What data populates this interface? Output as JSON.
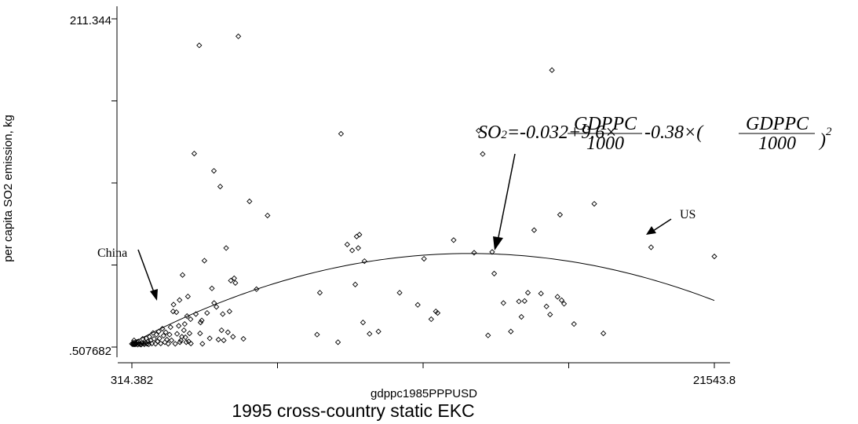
{
  "chart_data": {
    "type": "scatter",
    "title": "1995 cross-country static EKC",
    "xlabel": "gdppc1985PPPUSD",
    "ylabel": "per capita SO2 emission, kg",
    "xlim": [
      314.382,
      21543.8
    ],
    "ylim": [
      0.507682,
      211.344
    ],
    "x_tick_labels": [
      "314.382",
      "21543.8"
    ],
    "y_tick_labels": [
      "211.344",
      ".507682"
    ],
    "x_ticks": [
      314.382,
      5621.74,
      10929.09,
      16236.45,
      21543.8
    ],
    "y_ticks": [
      0.507682,
      53.217,
      105.926,
      158.635,
      211.344
    ],
    "grid": false,
    "series": [
      {
        "marker": "diamond-hollow",
        "points": [
          [
            314.4,
            2.6
          ],
          [
            344.4,
            2.3
          ],
          [
            362.7,
            3.3
          ],
          [
            380.9,
            2.3
          ],
          [
            405.2,
            2.6
          ],
          [
            393.1,
            4.8
          ],
          [
            417.4,
            2.3
          ],
          [
            441.7,
            3.6
          ],
          [
            454.1,
            2.3
          ],
          [
            478.1,
            2.8
          ],
          [
            502.6,
            3.8
          ],
          [
            526.8,
            2.1
          ],
          [
            551.2,
            4.1
          ],
          [
            569.5,
            2.6
          ],
          [
            612.0,
            2.3
          ],
          [
            654.5,
            2.1
          ],
          [
            685.0,
            3.1
          ],
          [
            709.3,
            5.8
          ],
          [
            739.7,
            2.8
          ],
          [
            770.0,
            2.3
          ],
          [
            806.5,
            3.3
          ],
          [
            837.0,
            6.1
          ],
          [
            867.1,
            2.6
          ],
          [
            897.6,
            4.1
          ],
          [
            928.1,
            2.3
          ],
          [
            958.4,
            7.1
          ],
          [
            1001.0,
            4.8
          ],
          [
            1043.3,
            2.8
          ],
          [
            1086.0,
            9.5
          ],
          [
            1122.4,
            5.8
          ],
          [
            1177.2,
            2.6
          ],
          [
            1207.6,
            8.5
          ],
          [
            1250.0,
            4.1
          ],
          [
            1292.7,
            10.5
          ],
          [
            1323.0,
            6.1
          ],
          [
            1365.5,
            2.8
          ],
          [
            1426.3,
            12.3
          ],
          [
            1468.8,
            7.8
          ],
          [
            1517.4,
            3.6
          ],
          [
            1547.7,
            10.0
          ],
          [
            1590.3,
            5.3
          ],
          [
            1638.9,
            2.6
          ],
          [
            1687.5,
            8.5
          ],
          [
            1724.0,
            13.3
          ],
          [
            1760.5,
            4.8
          ],
          [
            1815.1,
            23.4
          ],
          [
            1833.5,
            27.8
          ],
          [
            1894.1,
            2.6
          ],
          [
            1936.7,
            22.9
          ],
          [
            1960.9,
            9.0
          ],
          [
            2021.8,
            14.1
          ],
          [
            2052.1,
            30.7
          ],
          [
            2064.2,
            3.6
          ],
          [
            2100.7,
            4.8
          ],
          [
            2137.3,
            7.1
          ],
          [
            2161.5,
            46.8
          ],
          [
            2210.2,
            11.3
          ],
          [
            2240.6,
            15.3
          ],
          [
            2264.9,
            6.8
          ],
          [
            2295.2,
            3.6
          ],
          [
            2325.6,
            20.4
          ],
          [
            2356.0,
            33.0
          ],
          [
            2386.3,
            4.1
          ],
          [
            2416.7,
            9.3
          ],
          [
            2453.2,
            18.4
          ],
          [
            2465.4,
            2.8
          ],
          [
            2587.1,
            124.8
          ],
          [
            2647.8,
            21.7
          ],
          [
            2769.4,
            194.3
          ],
          [
            2799.8,
            9.3
          ],
          [
            2817.9,
            16.3
          ],
          [
            2860.5,
            17.6
          ],
          [
            2884.8,
            2.6
          ],
          [
            2958.0,
            56.0
          ],
          [
            3055.1,
            22.4
          ],
          [
            3152.3,
            6.1
          ],
          [
            3231.4,
            38.2
          ],
          [
            3304.4,
            113.7
          ],
          [
            3310.5,
            28.8
          ],
          [
            3395.4,
            26.3
          ],
          [
            3468.6,
            5.3
          ],
          [
            3534.4,
            103.6
          ],
          [
            3583.0,
            11.3
          ],
          [
            3626.4,
            21.7
          ],
          [
            3662.7,
            4.8
          ],
          [
            3750.6,
            64.1
          ],
          [
            3814.4,
            10.0
          ],
          [
            3871.9,
            23.4
          ],
          [
            3921.0,
            43.2
          ],
          [
            3999.8,
            7.1
          ],
          [
            4043.3,
            44.7
          ],
          [
            4086.5,
            41.7
          ],
          [
            4194.9,
            200.1
          ],
          [
            4379.9,
            5.8
          ],
          [
            4601.3,
            94.1
          ],
          [
            4856.8,
            37.7
          ],
          [
            5258.7,
            85.0
          ],
          [
            7064.1,
            8.5
          ],
          [
            7165.7,
            35.4
          ],
          [
            7826.6,
            3.6
          ],
          [
            7937.2,
            137.5
          ],
          [
            8163.4,
            66.4
          ],
          [
            8342.8,
            62.6
          ],
          [
            8456.5,
            40.7
          ],
          [
            8507.2,
            71.5
          ],
          [
            8564.6,
            64.1
          ],
          [
            8607.4,
            72.7
          ],
          [
            8738.8,
            16.3
          ],
          [
            8790.6,
            55.7
          ],
          [
            8977.0,
            9.0
          ],
          [
            9301.4,
            10.5
          ],
          [
            10072.0,
            35.4
          ],
          [
            10734.3,
            27.6
          ],
          [
            10962.2,
            57.2
          ],
          [
            11224.6,
            18.4
          ],
          [
            11392.5,
            23.4
          ],
          [
            11458.2,
            22.4
          ],
          [
            12042.1,
            69.2
          ],
          [
            12787.3,
            61.1
          ],
          [
            12951.0,
            139.5
          ],
          [
            13101.3,
            124.5
          ],
          [
            13296.0,
            8.0
          ],
          [
            13444.8,
            61.6
          ],
          [
            13520.6,
            47.7
          ],
          [
            13855.6,
            28.8
          ],
          [
            14127.0,
            10.5
          ],
          [
            14420.9,
            29.8
          ],
          [
            14512.1,
            19.9
          ],
          [
            14628.6,
            30.1
          ],
          [
            14748.5,
            35.4
          ],
          [
            14975.0,
            75.6
          ],
          [
            15226.0,
            34.9
          ],
          [
            15425.6,
            26.6
          ],
          [
            15556.8,
            21.4
          ],
          [
            15624.4,
            178.4
          ],
          [
            15827.5,
            32.8
          ],
          [
            15918.7,
            85.5
          ],
          [
            15977.1,
            30.6
          ],
          [
            16066.6,
            28.3
          ],
          [
            16428.1,
            15.3
          ],
          [
            17166.7,
            92.5
          ],
          [
            17498.7,
            9.3
          ],
          [
            19238.2,
            64.6
          ],
          [
            21543.8,
            58.7
          ]
        ]
      }
    ],
    "fit_curve": {
      "name": "quadratic fit",
      "equation_parts": [
        "SO",
        "2",
        "=-0.032+9.6×",
        "GDPPC",
        "1000",
        "-0.38×(",
        "GDPPC",
        "1000",
        ")",
        "2"
      ],
      "intercept": -0.032,
      "linear_coef": 9.6,
      "quadratic_coef": -0.38,
      "x_scale": 1000
    },
    "annotations": [
      "China",
      "US"
    ]
  }
}
